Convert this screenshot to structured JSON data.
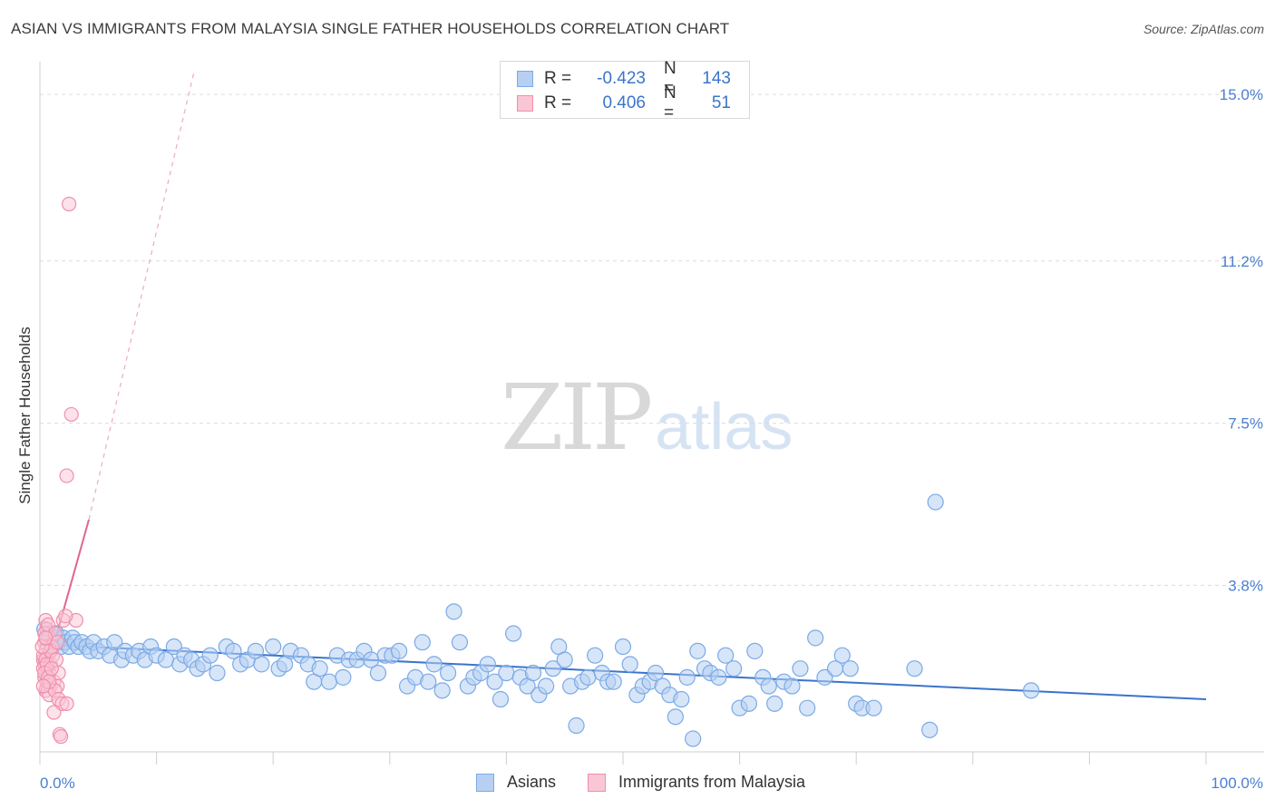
{
  "title": "ASIAN VS IMMIGRANTS FROM MALAYSIA SINGLE FATHER HOUSEHOLDS CORRELATION CHART",
  "source": "Source: ZipAtlas.com",
  "watermark": {
    "zip": "ZIP",
    "atlas": "atlas"
  },
  "stats": {
    "asians": {
      "r_label": "R =",
      "r": "-0.423",
      "n_label": "N =",
      "n": "143"
    },
    "malaysia": {
      "r_label": "R =",
      "r": "0.406",
      "n_label": "N =",
      "n": "51"
    }
  },
  "legend": {
    "asians": "Asians",
    "malaysia": "Immigrants from Malaysia"
  },
  "chart_data": {
    "type": "scatter",
    "title": "ASIAN VS IMMIGRANTS FROM MALAYSIA SINGLE FATHER HOUSEHOLDS CORRELATION CHART",
    "xlabel": "",
    "ylabel": "Single Father Households",
    "xlim": [
      0,
      100
    ],
    "ylim": [
      0,
      15.5
    ],
    "x_tick_labels": [
      "0.0%",
      "100.0%"
    ],
    "y_ticks": [
      3.8,
      7.5,
      11.2,
      15.0
    ],
    "y_tick_labels": [
      "3.8%",
      "7.5%",
      "11.2%",
      "15.0%"
    ],
    "grid": "horizontal dashed",
    "colors": {
      "asians": "#7aaae6",
      "asians_line": "#3a74cc",
      "malaysia": "#f08fac",
      "malaysia_line": "#e06590"
    },
    "series": [
      {
        "name": "Asians",
        "trend": {
          "x0": 0,
          "y0": 2.45,
          "x1": 100,
          "y1": 1.2
        },
        "points": [
          [
            0.4,
            2.8
          ],
          [
            0.6,
            2.6
          ],
          [
            0.8,
            2.7
          ],
          [
            1.0,
            2.5
          ],
          [
            1.2,
            2.6
          ],
          [
            1.4,
            2.7
          ],
          [
            1.6,
            2.5
          ],
          [
            1.8,
            2.4
          ],
          [
            2.0,
            2.6
          ],
          [
            2.2,
            2.5
          ],
          [
            2.5,
            2.4
          ],
          [
            2.8,
            2.6
          ],
          [
            3.0,
            2.5
          ],
          [
            3.3,
            2.4
          ],
          [
            3.6,
            2.5
          ],
          [
            4.0,
            2.4
          ],
          [
            4.3,
            2.3
          ],
          [
            4.6,
            2.5
          ],
          [
            5.0,
            2.3
          ],
          [
            5.5,
            2.4
          ],
          [
            6.0,
            2.2
          ],
          [
            6.4,
            2.5
          ],
          [
            7.0,
            2.1
          ],
          [
            7.3,
            2.3
          ],
          [
            8.0,
            2.2
          ],
          [
            8.5,
            2.3
          ],
          [
            9.0,
            2.1
          ],
          [
            9.5,
            2.4
          ],
          [
            10.0,
            2.2
          ],
          [
            10.8,
            2.1
          ],
          [
            11.5,
            2.4
          ],
          [
            12.0,
            2.0
          ],
          [
            12.4,
            2.2
          ],
          [
            13.0,
            2.1
          ],
          [
            13.5,
            1.9
          ],
          [
            14.0,
            2.0
          ],
          [
            14.6,
            2.2
          ],
          [
            15.2,
            1.8
          ],
          [
            16.0,
            2.4
          ],
          [
            16.6,
            2.3
          ],
          [
            17.2,
            2.0
          ],
          [
            17.8,
            2.1
          ],
          [
            18.5,
            2.3
          ],
          [
            19.0,
            2.0
          ],
          [
            20.0,
            2.4
          ],
          [
            20.5,
            1.9
          ],
          [
            21.0,
            2.0
          ],
          [
            21.5,
            2.3
          ],
          [
            22.4,
            2.2
          ],
          [
            23.0,
            2.0
          ],
          [
            23.5,
            1.6
          ],
          [
            24.0,
            1.9
          ],
          [
            24.8,
            1.6
          ],
          [
            25.5,
            2.2
          ],
          [
            26.0,
            1.7
          ],
          [
            26.5,
            2.1
          ],
          [
            27.2,
            2.1
          ],
          [
            27.8,
            2.3
          ],
          [
            28.4,
            2.1
          ],
          [
            29.0,
            1.8
          ],
          [
            29.6,
            2.2
          ],
          [
            30.2,
            2.2
          ],
          [
            30.8,
            2.3
          ],
          [
            31.5,
            1.5
          ],
          [
            32.2,
            1.7
          ],
          [
            32.8,
            2.5
          ],
          [
            33.3,
            1.6
          ],
          [
            33.8,
            2.0
          ],
          [
            34.5,
            1.4
          ],
          [
            35.0,
            1.8
          ],
          [
            35.5,
            3.2
          ],
          [
            36.0,
            2.5
          ],
          [
            36.7,
            1.5
          ],
          [
            37.2,
            1.7
          ],
          [
            37.8,
            1.8
          ],
          [
            38.4,
            2.0
          ],
          [
            39.0,
            1.6
          ],
          [
            39.5,
            1.2
          ],
          [
            40.0,
            1.8
          ],
          [
            40.6,
            2.7
          ],
          [
            41.2,
            1.7
          ],
          [
            41.8,
            1.5
          ],
          [
            42.3,
            1.8
          ],
          [
            42.8,
            1.3
          ],
          [
            43.4,
            1.5
          ],
          [
            44.0,
            1.9
          ],
          [
            44.5,
            2.4
          ],
          [
            45.0,
            2.1
          ],
          [
            45.5,
            1.5
          ],
          [
            46.0,
            0.6
          ],
          [
            46.5,
            1.6
          ],
          [
            47.0,
            1.7
          ],
          [
            47.6,
            2.2
          ],
          [
            48.2,
            1.8
          ],
          [
            48.7,
            1.6
          ],
          [
            49.2,
            1.6
          ],
          [
            50.0,
            2.4
          ],
          [
            50.6,
            2.0
          ],
          [
            51.2,
            1.3
          ],
          [
            51.7,
            1.5
          ],
          [
            52.3,
            1.6
          ],
          [
            52.8,
            1.8
          ],
          [
            53.4,
            1.5
          ],
          [
            54.0,
            1.3
          ],
          [
            54.5,
            0.8
          ],
          [
            55.0,
            1.2
          ],
          [
            55.5,
            1.7
          ],
          [
            56.0,
            0.3
          ],
          [
            56.4,
            2.3
          ],
          [
            57.0,
            1.9
          ],
          [
            57.5,
            1.8
          ],
          [
            58.2,
            1.7
          ],
          [
            58.8,
            2.2
          ],
          [
            59.5,
            1.9
          ],
          [
            60.0,
            1.0
          ],
          [
            60.8,
            1.1
          ],
          [
            61.3,
            2.3
          ],
          [
            62.0,
            1.7
          ],
          [
            62.5,
            1.5
          ],
          [
            63.0,
            1.1
          ],
          [
            63.8,
            1.6
          ],
          [
            64.5,
            1.5
          ],
          [
            65.2,
            1.9
          ],
          [
            65.8,
            1.0
          ],
          [
            66.5,
            2.6
          ],
          [
            67.3,
            1.7
          ],
          [
            68.2,
            1.9
          ],
          [
            68.8,
            2.2
          ],
          [
            69.5,
            1.9
          ],
          [
            70.0,
            1.1
          ],
          [
            70.5,
            1.0
          ],
          [
            71.5,
            1.0
          ],
          [
            76.8,
            5.7
          ],
          [
            76.3,
            0.5
          ],
          [
            75.0,
            1.9
          ],
          [
            85.0,
            1.4
          ]
        ]
      },
      {
        "name": "Immigrants from Malaysia",
        "trend": {
          "x0": 0,
          "y0": 1.3,
          "x1": 4.2,
          "y1": 5.3,
          "dashed_to": {
            "x": 13.2,
            "y": 15.5
          }
        },
        "points": [
          [
            2.5,
            12.5
          ],
          [
            2.7,
            7.7
          ],
          [
            2.3,
            6.3
          ],
          [
            2.0,
            3.0
          ],
          [
            3.1,
            3.0
          ],
          [
            2.2,
            3.1
          ],
          [
            0.5,
            3.0
          ],
          [
            0.6,
            2.8
          ],
          [
            0.8,
            2.6
          ],
          [
            0.4,
            2.5
          ],
          [
            0.5,
            2.3
          ],
          [
            0.7,
            2.2
          ],
          [
            0.3,
            2.1
          ],
          [
            0.4,
            2.0
          ],
          [
            0.6,
            1.9
          ],
          [
            0.8,
            1.8
          ],
          [
            0.3,
            2.2
          ],
          [
            0.5,
            2.1
          ],
          [
            0.9,
            2.0
          ],
          [
            1.1,
            2.2
          ],
          [
            0.4,
            1.7
          ],
          [
            0.6,
            1.6
          ],
          [
            0.9,
            1.5
          ],
          [
            1.2,
            1.6
          ],
          [
            1.5,
            1.5
          ],
          [
            1.6,
            1.8
          ],
          [
            0.5,
            1.4
          ],
          [
            0.8,
            1.3
          ],
          [
            1.3,
            1.4
          ],
          [
            1.6,
            1.2
          ],
          [
            1.9,
            1.1
          ],
          [
            2.3,
            1.1
          ],
          [
            1.2,
            0.9
          ],
          [
            1.7,
            0.4
          ],
          [
            1.8,
            0.35
          ],
          [
            0.4,
            2.7
          ],
          [
            0.7,
            2.9
          ],
          [
            1.0,
            2.4
          ],
          [
            0.3,
            1.9
          ],
          [
            0.6,
            2.0
          ],
          [
            0.9,
            2.3
          ],
          [
            1.4,
            2.1
          ],
          [
            0.2,
            2.4
          ],
          [
            0.4,
            1.8
          ],
          [
            0.7,
            1.7
          ],
          [
            1.0,
            1.9
          ],
          [
            1.3,
            2.7
          ],
          [
            1.5,
            2.5
          ],
          [
            0.8,
            1.6
          ],
          [
            0.5,
            2.6
          ],
          [
            0.3,
            1.5
          ]
        ]
      }
    ]
  }
}
